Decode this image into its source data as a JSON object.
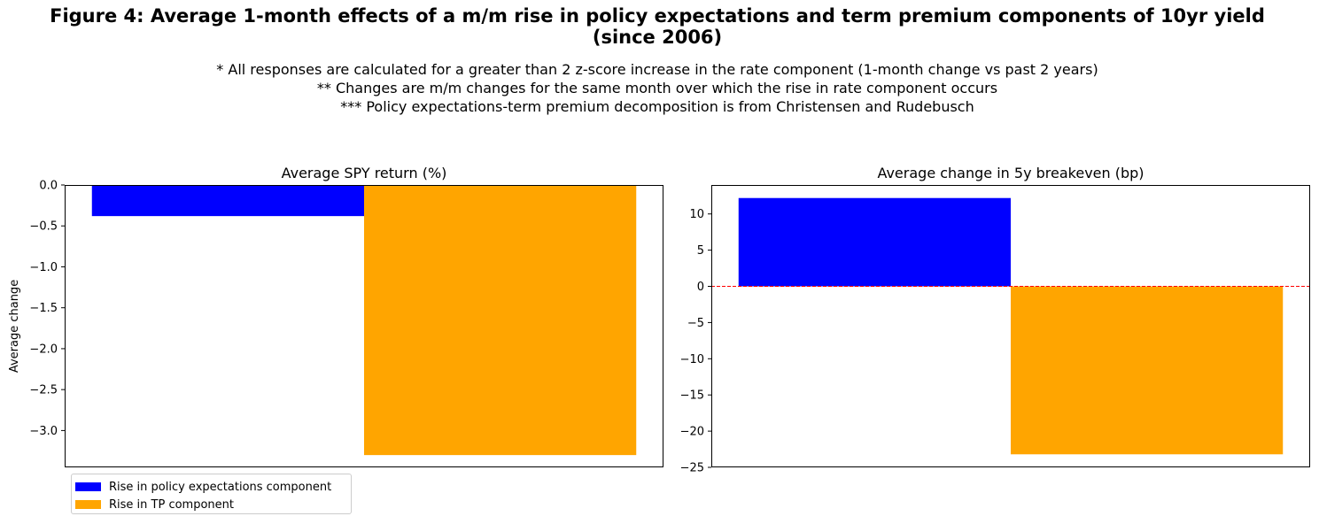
{
  "figure": {
    "title": "Figure 4: Average 1-month effects of a m/m rise in policy expectations and term premium components of 10yr yield",
    "title_line2": "(since 2006)",
    "notes": [
      "* All responses are calculated for a greater than 2 z-score increase in the rate component (1-month change vs past 2 years)",
      "** Changes are m/m changes for the same month over which the rise in rate component occurs",
      "*** Policy expectations-term premium decomposition is from Christensen and Rudebusch"
    ]
  },
  "legend": {
    "placement": "below-left",
    "items": [
      {
        "label": "Rise in policy expectations component",
        "color": "#0000ff"
      },
      {
        "label": "Rise in TP component",
        "color": "#ffa500"
      }
    ]
  },
  "chart_data": [
    {
      "type": "bar",
      "title": "Average SPY return (%)",
      "xlabel": "",
      "ylabel": "Average change",
      "ylim": [
        -3.45,
        0
      ],
      "yticks": [
        0.0,
        -0.5,
        -1.0,
        -1.5,
        -2.0,
        -2.5,
        -3.0
      ],
      "ytick_labels": [
        "0.0",
        "−0.5",
        "−1.0",
        "−1.5",
        "−2.0",
        "−2.5",
        "−3.0"
      ],
      "reference_line": null,
      "series": [
        {
          "name": "Rise in policy expectations component",
          "values": [
            -0.38
          ],
          "color": "#0000ff"
        },
        {
          "name": "Rise in TP component",
          "values": [
            -3.3
          ],
          "color": "#ffa500"
        }
      ]
    },
    {
      "type": "bar",
      "title": "Average change in 5y breakeven (bp)",
      "xlabel": "",
      "ylabel": "",
      "ylim": [
        -25,
        14
      ],
      "yticks": [
        10,
        5,
        0,
        -5,
        -10,
        -15,
        -20,
        -25
      ],
      "ytick_labels": [
        "10",
        "5",
        "0",
        "−5",
        "−10",
        "−15",
        "−20",
        "−25"
      ],
      "reference_line": {
        "y": 0,
        "color": "#ff0000",
        "style": "dashed"
      },
      "series": [
        {
          "name": "Rise in policy expectations component",
          "values": [
            12.2
          ],
          "color": "#0000ff"
        },
        {
          "name": "Rise in TP component",
          "values": [
            -23.2
          ],
          "color": "#ffa500"
        }
      ]
    }
  ]
}
